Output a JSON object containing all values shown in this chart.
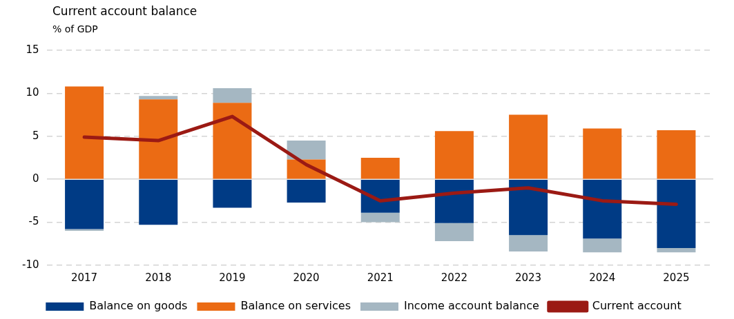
{
  "chart_data": {
    "type": "bar",
    "title": "Current account balance",
    "subtitle": "% of GDP",
    "stacked": true,
    "categories": [
      "2017",
      "2018",
      "2019",
      "2020",
      "2021",
      "2022",
      "2023",
      "2024",
      "2025"
    ],
    "series": [
      {
        "name": "Balance on goods",
        "color": "#003b85",
        "values": [
          -5.8,
          -5.3,
          -3.3,
          -2.7,
          -3.9,
          -5.1,
          -6.5,
          -6.9,
          -8.0
        ]
      },
      {
        "name": "Balance on services",
        "color": "#eb6b14",
        "values": [
          10.8,
          9.3,
          8.9,
          2.3,
          2.5,
          5.6,
          7.5,
          5.9,
          5.7
        ]
      },
      {
        "name": "Income account balance",
        "color": "#a5b7c2",
        "values": [
          -0.2,
          0.4,
          1.7,
          2.2,
          -1.1,
          -2.1,
          -1.9,
          -1.6,
          -0.5
        ]
      },
      {
        "name": "Current account",
        "type": "line",
        "color": "#9b1a14",
        "values": [
          4.9,
          4.5,
          7.3,
          1.7,
          -2.5,
          -1.6,
          -1.0,
          -2.5,
          -2.9
        ]
      }
    ],
    "ylim": [
      -10,
      15
    ],
    "yticks": [
      -10,
      -5,
      0,
      5,
      10,
      15
    ],
    "grid": "y",
    "legend": "bottom",
    "marker": "none"
  }
}
